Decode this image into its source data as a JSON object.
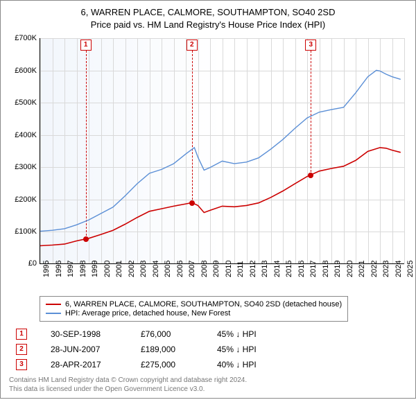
{
  "title_line1": "6, WARREN PLACE, CALMORE, SOUTHAMPTON, SO40 2SD",
  "title_line2": "Price paid vs. HM Land Registry's House Price Index (HPI)",
  "chart": {
    "type": "line",
    "background_gradient": [
      "#f2f6fc",
      "#ffffff"
    ],
    "grid_color": "#d9d9d9",
    "axis_color": "#000000",
    "ylim": [
      0,
      700000
    ],
    "ytick_step": 100000,
    "yticks": [
      "£0",
      "£100K",
      "£200K",
      "£300K",
      "£400K",
      "£500K",
      "£600K",
      "£700K"
    ],
    "xlim": [
      1995,
      2025
    ],
    "xticks": [
      1995,
      1996,
      1997,
      1998,
      1999,
      2000,
      2001,
      2002,
      2003,
      2004,
      2005,
      2006,
      2007,
      2008,
      2009,
      2010,
      2011,
      2012,
      2013,
      2014,
      2015,
      2016,
      2017,
      2018,
      2019,
      2020,
      2021,
      2022,
      2023,
      2024,
      2025
    ],
    "series": [
      {
        "name": "price_paid",
        "label": "6, WARREN PLACE, CALMORE, SOUTHAMPTON, SO40 2SD (detached house)",
        "color": "#cc0000",
        "line_width": 1.6,
        "points": [
          [
            1995,
            55000
          ],
          [
            1996,
            57000
          ],
          [
            1997,
            60000
          ],
          [
            1998,
            70000
          ],
          [
            1998.75,
            76000
          ],
          [
            1999,
            78000
          ],
          [
            2000,
            90000
          ],
          [
            2001,
            103000
          ],
          [
            2002,
            122000
          ],
          [
            2003,
            143000
          ],
          [
            2004,
            162000
          ],
          [
            2005,
            170000
          ],
          [
            2006,
            178000
          ],
          [
            2007,
            185000
          ],
          [
            2007.5,
            189000
          ],
          [
            2008,
            180000
          ],
          [
            2008.5,
            158000
          ],
          [
            2009,
            165000
          ],
          [
            2010,
            178000
          ],
          [
            2011,
            176000
          ],
          [
            2012,
            180000
          ],
          [
            2013,
            188000
          ],
          [
            2014,
            205000
          ],
          [
            2015,
            225000
          ],
          [
            2016,
            248000
          ],
          [
            2017,
            270000
          ],
          [
            2017.3,
            275000
          ],
          [
            2018,
            287000
          ],
          [
            2019,
            295000
          ],
          [
            2020,
            302000
          ],
          [
            2021,
            320000
          ],
          [
            2022,
            348000
          ],
          [
            2023,
            360000
          ],
          [
            2023.5,
            358000
          ],
          [
            2024,
            352000
          ],
          [
            2024.7,
            345000
          ]
        ]
      },
      {
        "name": "hpi",
        "label": "HPI: Average price, detached house, New Forest",
        "color": "#5b8fd6",
        "line_width": 1.4,
        "points": [
          [
            1995,
            100000
          ],
          [
            1996,
            103000
          ],
          [
            1997,
            108000
          ],
          [
            1998,
            120000
          ],
          [
            1999,
            135000
          ],
          [
            2000,
            155000
          ],
          [
            2001,
            175000
          ],
          [
            2002,
            210000
          ],
          [
            2003,
            248000
          ],
          [
            2004,
            280000
          ],
          [
            2005,
            292000
          ],
          [
            2006,
            310000
          ],
          [
            2007,
            340000
          ],
          [
            2007.7,
            360000
          ],
          [
            2008,
            330000
          ],
          [
            2008.5,
            290000
          ],
          [
            2009,
            298000
          ],
          [
            2010,
            318000
          ],
          [
            2011,
            310000
          ],
          [
            2012,
            315000
          ],
          [
            2013,
            328000
          ],
          [
            2014,
            355000
          ],
          [
            2015,
            385000
          ],
          [
            2016,
            420000
          ],
          [
            2017,
            452000
          ],
          [
            2018,
            470000
          ],
          [
            2019,
            478000
          ],
          [
            2020,
            485000
          ],
          [
            2021,
            530000
          ],
          [
            2022,
            580000
          ],
          [
            2022.7,
            600000
          ],
          [
            2023,
            598000
          ],
          [
            2023.5,
            588000
          ],
          [
            2024,
            580000
          ],
          [
            2024.7,
            572000
          ]
        ]
      }
    ],
    "sale_markers": [
      {
        "n": "1",
        "year": 1998.75,
        "price": 76000
      },
      {
        "n": "2",
        "year": 2007.5,
        "price": 189000
      },
      {
        "n": "3",
        "year": 2017.3,
        "price": 275000
      }
    ],
    "marker_color": "#cc0000",
    "point_fill": "#cc0000"
  },
  "legend": {
    "items": [
      {
        "color": "#cc0000",
        "label": "6, WARREN PLACE, CALMORE, SOUTHAMPTON, SO40 2SD (detached house)"
      },
      {
        "color": "#5b8fd6",
        "label": "HPI: Average price, detached house, New Forest"
      }
    ]
  },
  "sales": [
    {
      "n": "1",
      "date": "30-SEP-1998",
      "price": "£76,000",
      "delta": "45% ↓ HPI"
    },
    {
      "n": "2",
      "date": "28-JUN-2007",
      "price": "£189,000",
      "delta": "45% ↓ HPI"
    },
    {
      "n": "3",
      "date": "28-APR-2017",
      "price": "£275,000",
      "delta": "40% ↓ HPI"
    }
  ],
  "footer_line1": "Contains HM Land Registry data © Crown copyright and database right 2024.",
  "footer_line2": "This data is licensed under the Open Government Licence v3.0."
}
